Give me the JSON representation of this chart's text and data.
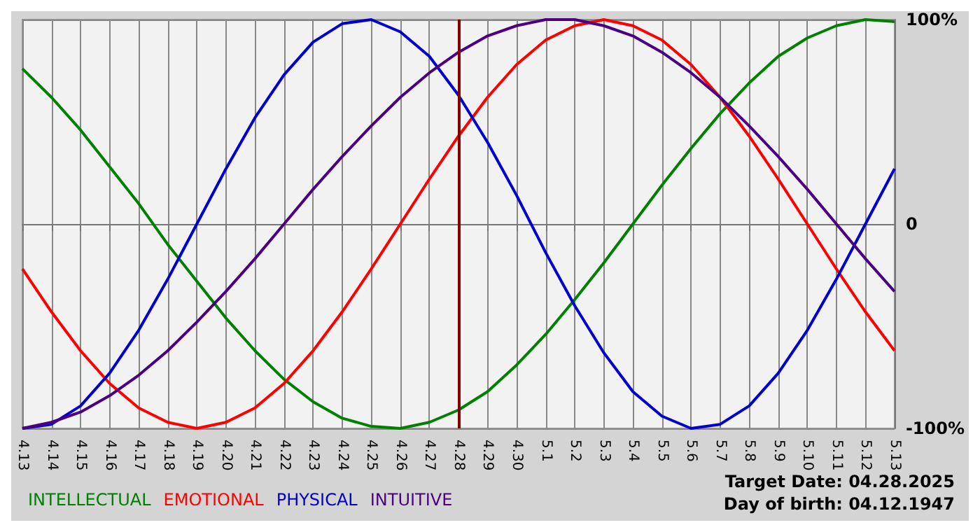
{
  "chart_data": {
    "type": "line",
    "categories": [
      "4.13",
      "4.14",
      "4.15",
      "4.16",
      "4.17",
      "4.18",
      "4.19",
      "4.20",
      "4.21",
      "4.22",
      "4.23",
      "4.24",
      "4.25",
      "4.26",
      "4.27",
      "4.28",
      "4.29",
      "4.30",
      "5.1",
      "5.2",
      "5.3",
      "5.4",
      "5.5",
      "5.6",
      "5.7",
      "5.8",
      "5.9",
      "5.10",
      "5.11",
      "5.12",
      "5.13"
    ],
    "series": [
      {
        "name": "INTELLECTUAL",
        "color": "#008000",
        "values": [
          76,
          62,
          46,
          28,
          10,
          -10,
          -28,
          -46,
          -62,
          -76,
          -87,
          -95,
          -99,
          -100,
          -97,
          -91,
          -82,
          -69,
          -54,
          -37,
          -19,
          0,
          19,
          37,
          54,
          69,
          82,
          91,
          97,
          100,
          99
        ]
      },
      {
        "name": "EMOTIONAL",
        "color": "#ff0000",
        "values": [
          -22,
          -43,
          -62,
          -78,
          -90,
          -97,
          -100,
          -97,
          -90,
          -78,
          -62,
          -43,
          -22,
          0,
          22,
          43,
          62,
          78,
          90,
          97,
          100,
          97,
          90,
          78,
          62,
          43,
          22,
          0,
          -22,
          -43,
          -62
        ]
      },
      {
        "name": "PHYSICAL",
        "color": "#0000cc",
        "values": [
          -100,
          -98,
          -89,
          -73,
          -52,
          -27,
          0,
          27,
          52,
          73,
          89,
          98,
          100,
          94,
          82,
          63,
          40,
          14,
          -14,
          -40,
          -63,
          -82,
          -94,
          -100,
          -98,
          -89,
          -73,
          -52,
          -27,
          0,
          27
        ]
      },
      {
        "name": "INTUITIVE",
        "color": "#4b0082",
        "values": [
          -100,
          -97,
          -92,
          -84,
          -74,
          -62,
          -48,
          -33,
          -17,
          0,
          17,
          33,
          48,
          62,
          74,
          84,
          92,
          97,
          100,
          100,
          97,
          92,
          84,
          74,
          62,
          48,
          33,
          17,
          0,
          -17,
          -33
        ]
      }
    ],
    "ylim": [
      -100,
      100
    ],
    "yticks": [
      {
        "value": -100,
        "label": "-100%"
      },
      0,
      {
        "value": 100,
        "label": "100%"
      }
    ],
    "ref_lines": [
      {
        "axis": "x",
        "value": "4.28",
        "color": "#800000"
      }
    ],
    "annotations": [
      "Target Date: 04.28.2025",
      "Day of birth: 04.12.1947"
    ],
    "grid": true,
    "legend": "bottom left",
    "marker": "none",
    "line_style": "solid"
  }
}
